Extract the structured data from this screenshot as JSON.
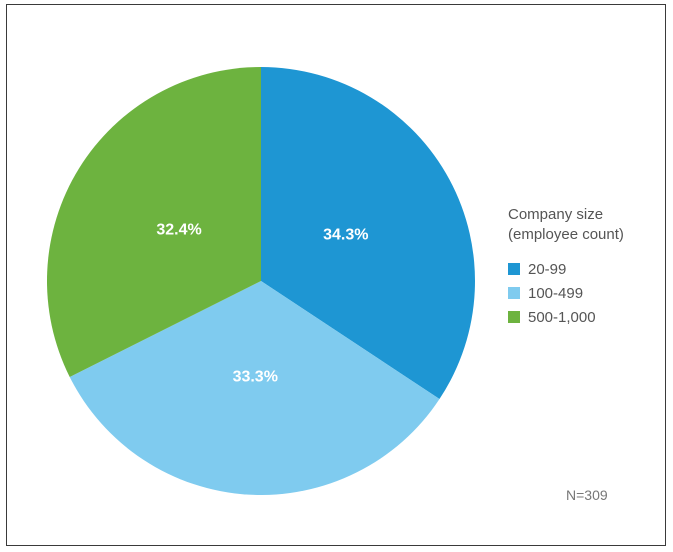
{
  "chart_data": {
    "type": "pie",
    "slices": [
      {
        "label": "20-99",
        "value": 34.3,
        "display": "34.3%",
        "color": "#1E96D3"
      },
      {
        "label": "100-499",
        "value": 33.3,
        "display": "33.3%",
        "color": "#7FCBEF"
      },
      {
        "label": "500-1,000",
        "value": 32.4,
        "display": "32.4%",
        "color": "#6DB33F"
      }
    ],
    "legend": {
      "title_line1": "Company size",
      "title_line2": "(employee count)",
      "placement": "right"
    },
    "note": "N=309"
  }
}
